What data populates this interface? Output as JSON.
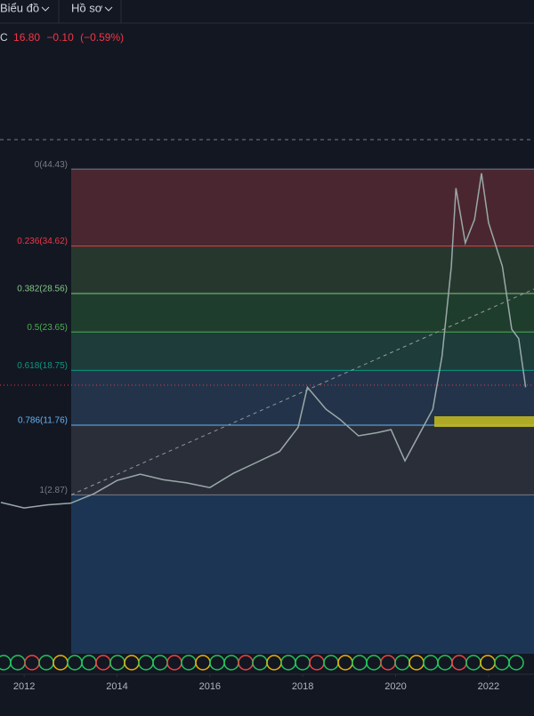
{
  "toolbar": {
    "items": [
      "Biểu đồ",
      "Hồ sơ"
    ]
  },
  "chart_data": {
    "type": "line",
    "legend": {
      "symbol": "C",
      "close": "16.80",
      "change": "−0.10",
      "change_pct": "(−0.59%)"
    },
    "x": [
      2011.5,
      2012,
      2012.5,
      2013,
      2013.5,
      2014,
      2014.5,
      2015,
      2015.5,
      2016,
      2016.5,
      2017,
      2017.5,
      2017.9,
      2018.1,
      2018.5,
      2018.8,
      2019.2,
      2019.6,
      2019.9,
      2020.2,
      2020.5,
      2020.8,
      2021,
      2021.2,
      2021.3,
      2021.5,
      2021.7,
      2021.85,
      2022,
      2022.3,
      2022.5,
      2022.65,
      2022.8
    ],
    "series": [
      {
        "name": "C",
        "color": "#9aa8a8",
        "values": [
          1.9,
          1.2,
          1.6,
          1.8,
          3.0,
          4.7,
          5.5,
          4.8,
          4.4,
          3.8,
          5.6,
          7.0,
          8.4,
          11.5,
          16.6,
          13.8,
          12.5,
          10.4,
          10.8,
          11.2,
          7.2,
          10.5,
          13.8,
          20.6,
          32.0,
          42.0,
          35.0,
          38.0,
          43.9,
          37.6,
          32.0,
          24.0,
          22.8,
          16.6
        ]
      }
    ],
    "levels": [
      {
        "label": "0(44.43)",
        "price": 44.43,
        "color": "#787b86",
        "fill": "#4a2730"
      },
      {
        "label": "0.236(34.62)",
        "price": 34.62,
        "color": "#f23645",
        "fill": "#26382e"
      },
      {
        "label": "0.382(28.56)",
        "price": 28.56,
        "color": "#81c784",
        "fill": "#1f3d2c"
      },
      {
        "label": "0.5(23.65)",
        "price": 23.65,
        "color": "#4caf50",
        "fill": "#1d3c3a"
      },
      {
        "label": "0.618(18.75)",
        "price": 18.75,
        "color": "#089981",
        "fill": "#23344a"
      },
      {
        "label": "0.786(11.76)",
        "price": 11.76,
        "color": "#64b5f6",
        "fill": "#2a2e39"
      },
      {
        "label": "1(2.87)",
        "price": 2.87,
        "color": "#787b86",
        "fill": "#1c3554"
      }
    ],
    "xlim": [
      2011.48,
      2022.98
    ],
    "ylim": [
      -17.4,
      62.6
    ],
    "xticks": [
      2012,
      2014,
      2016,
      2018,
      2020,
      2022
    ]
  }
}
